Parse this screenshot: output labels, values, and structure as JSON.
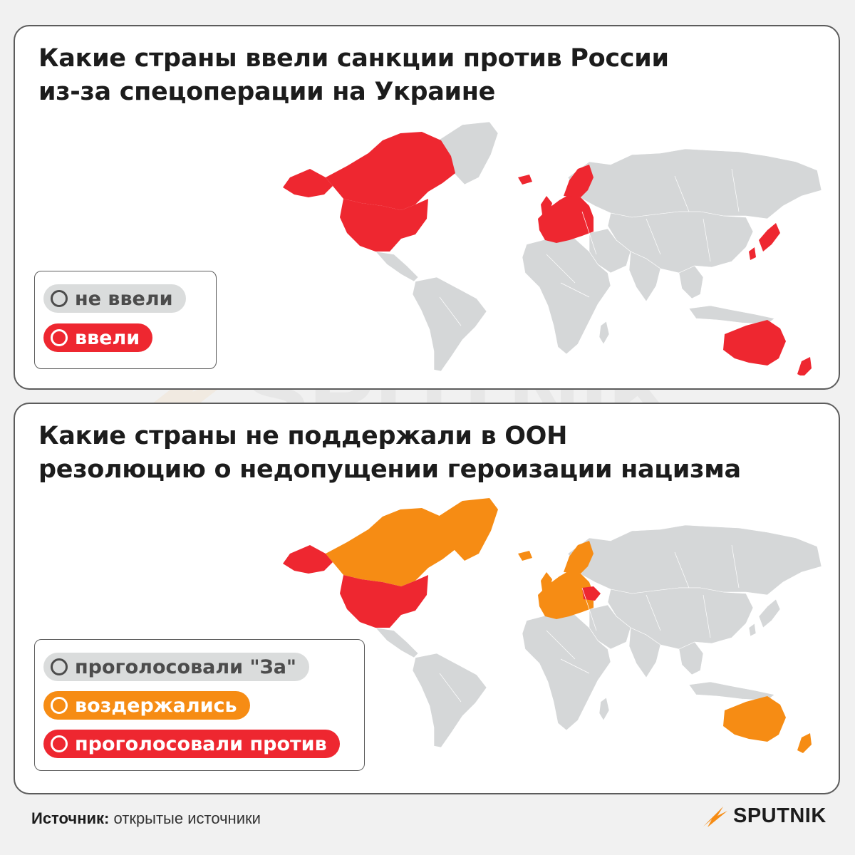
{
  "colors": {
    "not_imposed": "#d5d7d8",
    "imposed": "#ee2730",
    "abstained": "#f68c14",
    "voted_against": "#ee2730"
  },
  "map1": {
    "title_line1": "Какие страны ввели санкции против России",
    "title_line2": "из-за спецоперации на Украине",
    "legend": [
      {
        "label": "не ввели",
        "color": "gray"
      },
      {
        "label": "ввели",
        "color": "red"
      }
    ],
    "highlighted": {
      "red": [
        "Canada",
        "United States",
        "Alaska",
        "Greenland",
        "United Kingdom",
        "Ireland",
        "Iceland",
        "Norway",
        "Sweden",
        "Finland",
        "European Union",
        "Japan",
        "South Korea",
        "Taiwan",
        "Singapore",
        "Australia",
        "New Zealand"
      ]
    }
  },
  "map2": {
    "title_line1": "Какие страны не поддержали в ООН",
    "title_line2": "резолюцию о недопущении героизации нацизма",
    "legend": [
      {
        "label": "проголосовали \"За\"",
        "color": "gray"
      },
      {
        "label": "воздержались",
        "color": "orange"
      },
      {
        "label": "проголосовали против",
        "color": "red"
      }
    ],
    "highlighted": {
      "orange": [
        "Canada",
        "Greenland",
        "United Kingdom",
        "Ireland",
        "Iceland",
        "Norway",
        "Sweden",
        "Finland",
        "European Union",
        "Australia",
        "New Zealand"
      ],
      "red": [
        "United States",
        "Alaska",
        "Ukraine"
      ]
    }
  },
  "footer": {
    "source_label": "Источник:",
    "source_value": "открытые источники"
  },
  "logo": {
    "text": "SPUTNIK",
    "icon": "sputnik-swoosh-icon"
  },
  "watermark": {
    "text": "SPUTNIK"
  }
}
